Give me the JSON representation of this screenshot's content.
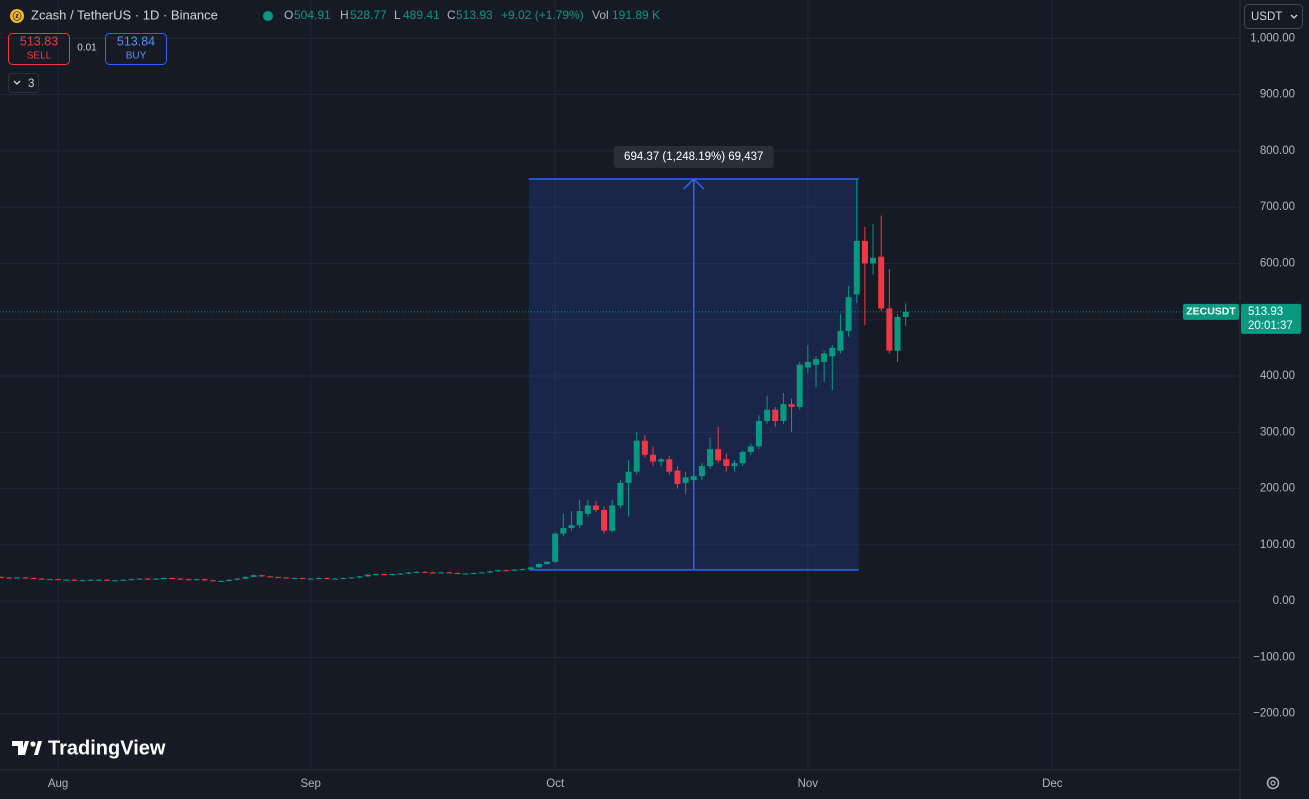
{
  "header": {
    "symbol": "Zcash / TetherUS · 1D · Binance",
    "o_label": "O",
    "h_label": "H",
    "l_label": "L",
    "c_label": "C",
    "change": "+9.02 (+1.79%)",
    "vol_label": "Vol",
    "volume": "191.89 K"
  },
  "trade": {
    "sell_price": 513.83,
    "sell": "SELL",
    "spread": 0.01,
    "buy_price": 513.84,
    "buy": "BUY"
  },
  "indicators_toggle": "3",
  "currency": "USDT",
  "brand": "TradingView",
  "chart_data": {
    "type": "candlestick",
    "symbol_label": "ZECUSDT",
    "countdown": "20:01:37",
    "up_color": "#089981",
    "down_color": "#f23645",
    "grid": true,
    "ylim": [
      -300,
      1068
    ],
    "yticks": [
      {
        "value": -200,
        "label": "−200.00"
      },
      {
        "value": -100,
        "label": "−100.00"
      },
      {
        "value": 0,
        "label": "0.00"
      },
      {
        "value": 100,
        "label": "100.00"
      },
      {
        "value": 200,
        "label": "200.00"
      },
      {
        "value": 300,
        "label": "300.00"
      },
      {
        "value": 400,
        "label": "400.00"
      },
      {
        "value": 500,
        "label": "500.00"
      },
      {
        "value": 600,
        "label": "600.00"
      },
      {
        "value": 700,
        "label": "700.00"
      },
      {
        "value": 800,
        "label": "800.00"
      },
      {
        "value": 900,
        "label": "900.00"
      },
      {
        "value": 1000,
        "label": "1,000.00"
      }
    ],
    "measure": {
      "label": "694.37 (1,248.19%) 69,437",
      "from": 55.63,
      "to": 750
    },
    "categories": [
      null,
      null,
      null,
      null,
      null,
      null,
      null,
      "Aug",
      null,
      null,
      null,
      null,
      null,
      null,
      null,
      null,
      null,
      null,
      null,
      null,
      null,
      null,
      null,
      null,
      null,
      null,
      null,
      null,
      null,
      null,
      null,
      null,
      null,
      null,
      null,
      null,
      null,
      null,
      "Sep",
      null,
      null,
      null,
      null,
      null,
      null,
      null,
      null,
      null,
      null,
      null,
      null,
      null,
      null,
      null,
      null,
      null,
      null,
      null,
      null,
      null,
      null,
      null,
      null,
      null,
      null,
      null,
      null,
      null,
      "Oct",
      null,
      null,
      null,
      null,
      null,
      null,
      null,
      null,
      null,
      null,
      null,
      null,
      null,
      null,
      null,
      null,
      null,
      null,
      null,
      null,
      null,
      null,
      null,
      null,
      null,
      null,
      null,
      null,
      null,
      null,
      "Nov",
      null,
      null,
      null,
      null,
      null,
      null,
      null,
      null,
      null,
      null,
      null,
      null,
      null,
      null,
      null,
      null,
      null,
      null,
      null,
      null,
      null,
      null,
      null,
      null,
      null,
      null,
      null,
      null,
      null,
      "Dec",
      null,
      null,
      null,
      null,
      null,
      null,
      null,
      null,
      null,
      null,
      null,
      null,
      null,
      null,
      null,
      null,
      null,
      null,
      null,
      null,
      null,
      null,
      null
    ],
    "open": [
      43,
      42,
      41,
      42,
      41,
      40,
      39,
      39,
      38,
      38,
      37,
      37,
      38,
      38,
      37,
      37,
      38,
      39,
      40,
      39,
      40,
      41,
      40,
      39,
      38,
      39,
      37,
      36,
      36,
      38,
      40,
      43,
      46,
      44,
      43,
      42,
      41,
      41,
      40,
      40,
      41,
      40,
      40,
      41,
      42,
      44,
      47,
      48,
      47,
      48,
      49,
      51,
      52,
      51,
      50,
      51,
      50,
      49,
      49,
      50,
      51,
      53,
      55,
      54,
      56,
      57,
      60,
      66,
      70,
      120,
      130,
      135,
      155,
      170,
      162,
      125,
      170,
      210,
      230,
      285,
      260,
      248,
      252,
      232,
      210,
      215,
      222,
      240,
      270,
      252,
      240,
      245,
      265,
      275,
      320,
      340,
      320,
      350,
      345,
      415,
      420,
      425,
      435,
      445,
      480,
      545,
      640,
      600,
      612,
      520,
      445,
      504.91,
      null,
      null,
      null,
      null,
      null,
      null,
      null,
      null,
      null,
      null,
      null,
      null,
      null,
      null,
      null,
      null,
      null,
      null,
      null,
      null,
      null,
      null,
      null,
      null,
      null,
      null,
      null,
      null,
      null,
      null,
      null,
      null,
      null,
      null,
      null,
      null,
      null,
      null,
      null,
      null,
      null
    ],
    "high": [
      44,
      43,
      43,
      43,
      42,
      41,
      40,
      40,
      39,
      39,
      38,
      39,
      39,
      39,
      38,
      39,
      40,
      41,
      41,
      41,
      42,
      42,
      41,
      40,
      40,
      40,
      38,
      37,
      39,
      41,
      44,
      47,
      47,
      45,
      44,
      43,
      42,
      42,
      41,
      42,
      42,
      41,
      42,
      43,
      45,
      48,
      49,
      49,
      49,
      50,
      52,
      53,
      53,
      52,
      52,
      52,
      51,
      50,
      51,
      52,
      54,
      56,
      56,
      57,
      58,
      61,
      67,
      71,
      122,
      155,
      160,
      180,
      180,
      178,
      168,
      180,
      215,
      250,
      300,
      295,
      275,
      255,
      258,
      240,
      230,
      225,
      245,
      290,
      310,
      262,
      250,
      268,
      280,
      330,
      365,
      345,
      370,
      360,
      425,
      455,
      435,
      445,
      455,
      510,
      560,
      750,
      665,
      670,
      685,
      590,
      510,
      528.77,
      null,
      null,
      null,
      null,
      null,
      null,
      null,
      null,
      null,
      null,
      null,
      null,
      null,
      null,
      null,
      null,
      null,
      null,
      null,
      null,
      null,
      null,
      null,
      null,
      null,
      null,
      null,
      null,
      null,
      null,
      null,
      null,
      null,
      null,
      null,
      null,
      null,
      null,
      null,
      null,
      null
    ],
    "low": [
      41,
      40,
      40,
      40,
      39,
      38,
      38,
      37,
      37,
      36,
      36,
      36,
      37,
      36,
      36,
      36,
      37,
      38,
      38,
      38,
      39,
      39,
      38,
      37,
      37,
      36,
      35,
      35,
      35,
      37,
      39,
      42,
      43,
      42,
      41,
      40,
      40,
      39,
      39,
      39,
      39,
      39,
      39,
      40,
      41,
      43,
      46,
      46,
      46,
      47,
      48,
      50,
      50,
      49,
      49,
      49,
      48,
      48,
      48,
      49,
      50,
      52,
      53,
      53,
      55,
      56,
      59,
      65,
      68,
      115,
      125,
      130,
      150,
      158,
      120,
      122,
      165,
      150,
      225,
      255,
      240,
      240,
      225,
      200,
      190,
      210,
      215,
      235,
      245,
      230,
      230,
      240,
      260,
      270,
      315,
      310,
      315,
      300,
      340,
      405,
      380,
      390,
      375,
      440,
      470,
      530,
      490,
      580,
      515,
      440,
      425,
      489.41,
      null,
      null,
      null,
      null,
      null,
      null,
      null,
      null,
      null,
      null,
      null,
      null,
      null,
      null,
      null,
      null,
      null,
      null,
      null,
      null,
      null,
      null,
      null,
      null,
      null,
      null,
      null,
      null,
      null,
      null,
      null,
      null,
      null,
      null,
      null,
      null,
      null,
      null,
      null,
      null,
      null
    ],
    "close": [
      42,
      41,
      42,
      41,
      40,
      39,
      39,
      38,
      38,
      37,
      37,
      38,
      38,
      37,
      37,
      38,
      39,
      40,
      39,
      40,
      41,
      40,
      39,
      38,
      39,
      37,
      36,
      36,
      38,
      40,
      43,
      46,
      44,
      43,
      42,
      41,
      41,
      40,
      40,
      41,
      40,
      40,
      41,
      42,
      44,
      47,
      48,
      47,
      48,
      49,
      51,
      52,
      51,
      50,
      51,
      50,
      49,
      49,
      50,
      51,
      53,
      55,
      54,
      56,
      57,
      60,
      66,
      70,
      120,
      130,
      135,
      160,
      170,
      162,
      125,
      170,
      210,
      230,
      285,
      260,
      248,
      252,
      230,
      208,
      220,
      222,
      240,
      270,
      250,
      240,
      245,
      265,
      275,
      320,
      340,
      320,
      350,
      345,
      420,
      425,
      430,
      440,
      450,
      480,
      540,
      640,
      600,
      610,
      520,
      445,
      505,
      513.93,
      null,
      null,
      null,
      null,
      null,
      null,
      null,
      null,
      null,
      null,
      null,
      null,
      null,
      null,
      null,
      null,
      null,
      null,
      null,
      null,
      null,
      null,
      null,
      null,
      null,
      null,
      null,
      null,
      null,
      null,
      null,
      null,
      null,
      null,
      null,
      null,
      null,
      null,
      null,
      null,
      null
    ]
  }
}
